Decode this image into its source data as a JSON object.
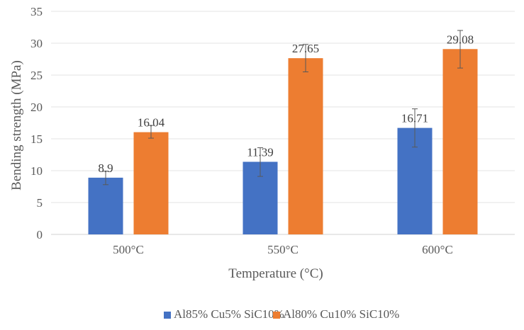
{
  "chart_data": {
    "type": "bar",
    "title": "",
    "xlabel": "Temperature (°C)",
    "ylabel": "Bending strength (MPa)",
    "ylim": [
      0,
      35
    ],
    "yticks": [
      "0",
      "5",
      "10",
      "15",
      "20",
      "25",
      "30",
      "35"
    ],
    "categories": [
      "500°C",
      "550°C",
      "600°C"
    ],
    "grid": true,
    "legend_position": "bottom",
    "series": [
      {
        "name": "Al85% Cu5% SiC10%",
        "color": "#4472C4",
        "values": [
          8.9,
          11.39,
          16.71
        ],
        "labels": [
          "8.9",
          "11.39",
          "16.71"
        ],
        "error_low": [
          7.8,
          9.1,
          13.7
        ],
        "error_high": [
          9.9,
          13.6,
          19.7
        ]
      },
      {
        "name": "Al80% Cu10% SiC10%",
        "color": "#ED7D31",
        "values": [
          16.04,
          27.65,
          29.08
        ],
        "labels": [
          "16.04",
          "27.65",
          "29.08"
        ],
        "error_low": [
          15.1,
          25.5,
          26.1
        ],
        "error_high": [
          17.1,
          29.8,
          32.0
        ]
      }
    ]
  }
}
